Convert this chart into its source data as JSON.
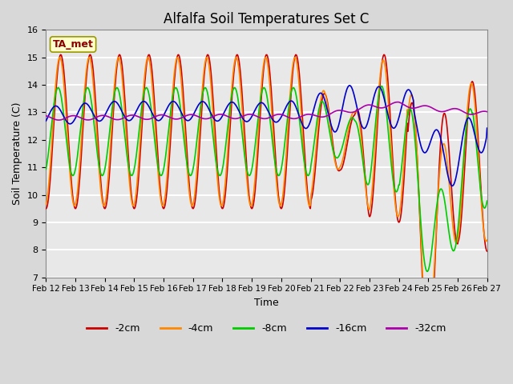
{
  "title": "Alfalfa Soil Temperatures Set C",
  "xlabel": "Time",
  "ylabel": "Soil Temperature (C)",
  "ylim": [
    7.0,
    16.0
  ],
  "yticks": [
    7.0,
    8.0,
    9.0,
    10.0,
    11.0,
    12.0,
    13.0,
    14.0,
    15.0,
    16.0
  ],
  "xtick_labels": [
    "Feb 12",
    "Feb 13",
    "Feb 14",
    "Feb 15",
    "Feb 16",
    "Feb 17",
    "Feb 18",
    "Feb 19",
    "Feb 20",
    "Feb 21",
    "Feb 22",
    "Feb 23",
    "Feb 24",
    "Feb 25",
    "Feb 26",
    "Feb 27"
  ],
  "colors": {
    "-2cm": "#cc0000",
    "-4cm": "#ff8800",
    "-8cm": "#00cc00",
    "-16cm": "#0000cc",
    "-32cm": "#aa00aa"
  },
  "legend_labels": [
    "-2cm",
    "-4cm",
    "-8cm",
    "-16cm",
    "-32cm"
  ],
  "annotation_text": "TA_met",
  "annotation_box_color": "#ffffcc",
  "annotation_text_color": "#880000",
  "fig_bg_color": "#d8d8d8",
  "plot_bg_color": "#e8e8e8",
  "grid_color": "#ffffff",
  "title_fontsize": 12,
  "axis_label_fontsize": 9
}
